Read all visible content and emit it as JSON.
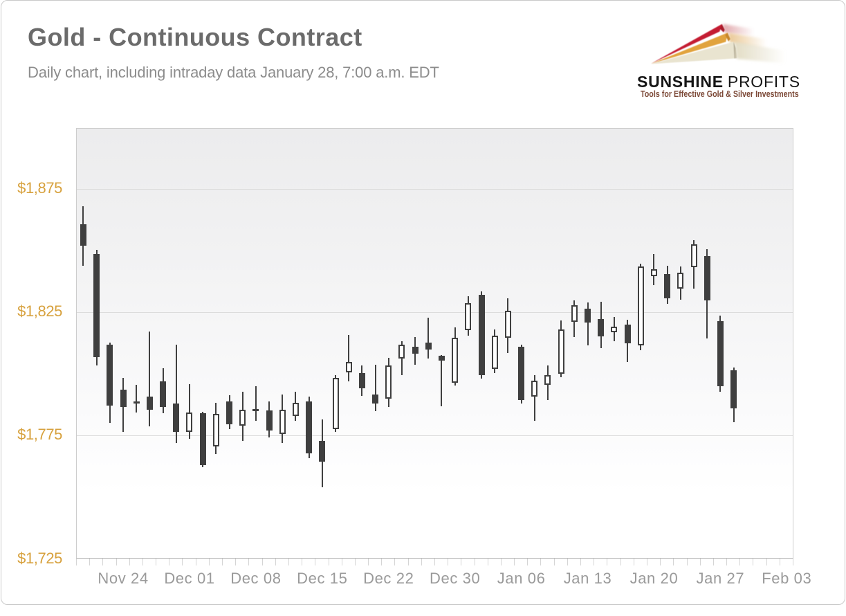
{
  "header": {
    "title": "Gold - Continuous Contract",
    "subtitle": "Daily chart, including intraday data January 28, 7:00 a.m. EDT"
  },
  "logo": {
    "brand_bold": "SUNSHINE",
    "brand_light": "PROFITS",
    "tagline": "Tools for Effective Gold & Silver Investments",
    "bolt_colors": {
      "red": "#c42033",
      "gold": "#e1a33e",
      "cream": "#e9e4d0"
    }
  },
  "colors": {
    "title": "#6b6b6b",
    "subtitle": "#8c8c8c",
    "y_axis_labels": "#d7a13d",
    "x_axis_labels": "#9b9b9b",
    "candle_outline": "#3f3f3f",
    "candle_down_fill": "#3f3f3f",
    "candle_up_fill": "#ffffff",
    "gridline": "#dcdcdc",
    "plot_border": "#cdcdcd",
    "tagline": "#7d4a38"
  },
  "chart_data": {
    "type": "candlestick",
    "title": "Gold - Continuous Contract",
    "subtitle": "Daily chart, including intraday data January 28, 7:00 a.m. EDT",
    "grid": "horizontal",
    "legend_position": "none",
    "y_axis": {
      "tick_labels": [
        "$1,875",
        "$1,825",
        "$1,775",
        "$1,725"
      ],
      "tick_values": [
        1875,
        1825,
        1775,
        1725
      ],
      "unit": "USD per troy ounce",
      "range": [
        1725,
        1900
      ]
    },
    "x_axis": {
      "slots": 54,
      "labels": [
        {
          "text": "Nov 24",
          "slot": 3
        },
        {
          "text": "Dec 01",
          "slot": 8
        },
        {
          "text": "Dec 08",
          "slot": 13
        },
        {
          "text": "Dec 15",
          "slot": 18
        },
        {
          "text": "Dec 22",
          "slot": 23
        },
        {
          "text": "Dec 30",
          "slot": 28
        },
        {
          "text": "Jan 06",
          "slot": 33
        },
        {
          "text": "Jan 13",
          "slot": 38
        },
        {
          "text": "Jan 20",
          "slot": 43
        },
        {
          "text": "Jan 27",
          "slot": 48
        },
        {
          "text": "Feb 03",
          "slot": 53
        }
      ]
    },
    "candles": [
      {
        "o": 1860.3,
        "h": 1867.7,
        "l": 1843.7,
        "c": 1851.6
      },
      {
        "o": 1848.3,
        "h": 1850.0,
        "l": 1803.2,
        "c": 1806.4
      },
      {
        "o": 1811.7,
        "h": 1812.4,
        "l": 1779.9,
        "c": 1786.9
      },
      {
        "o": 1793.3,
        "h": 1798.2,
        "l": 1776.2,
        "c": 1786.2
      },
      {
        "o": 1788.5,
        "h": 1795.4,
        "l": 1784.1,
        "c": 1787.7
      },
      {
        "o": 1790.4,
        "h": 1816.8,
        "l": 1778.5,
        "c": 1785.3
      },
      {
        "o": 1796.8,
        "h": 1802.0,
        "l": 1783.7,
        "c": 1786.2
      },
      {
        "o": 1787.6,
        "h": 1811.7,
        "l": 1771.7,
        "c": 1776.2
      },
      {
        "o": 1776.2,
        "h": 1795.7,
        "l": 1773.4,
        "c": 1784.1
      },
      {
        "o": 1783.7,
        "h": 1784.4,
        "l": 1761.8,
        "c": 1762.7
      },
      {
        "o": 1770.3,
        "h": 1788.0,
        "l": 1767.1,
        "c": 1783.4
      },
      {
        "o": 1788.6,
        "h": 1791.1,
        "l": 1777.3,
        "c": 1779.2
      },
      {
        "o": 1778.7,
        "h": 1792.4,
        "l": 1772.7,
        "c": 1785.2
      },
      {
        "o": 1785.5,
        "h": 1794.7,
        "l": 1780.6,
        "c": 1784.5
      },
      {
        "o": 1784.8,
        "h": 1788.7,
        "l": 1774.0,
        "c": 1776.9
      },
      {
        "o": 1775.5,
        "h": 1791.5,
        "l": 1771.7,
        "c": 1785.2
      },
      {
        "o": 1782.7,
        "h": 1792.6,
        "l": 1780.6,
        "c": 1788.0
      },
      {
        "o": 1788.6,
        "h": 1790.4,
        "l": 1765.6,
        "c": 1767.5
      },
      {
        "o": 1772.7,
        "h": 1781.3,
        "l": 1753.8,
        "c": 1764.2
      },
      {
        "o": 1777.2,
        "h": 1799.2,
        "l": 1776.2,
        "c": 1798.2
      },
      {
        "o": 1800.4,
        "h": 1815.6,
        "l": 1796.8,
        "c": 1804.6
      },
      {
        "o": 1800.1,
        "h": 1803.2,
        "l": 1790.7,
        "c": 1793.9
      },
      {
        "o": 1791.5,
        "h": 1803.4,
        "l": 1784.5,
        "c": 1787.6
      },
      {
        "o": 1789.7,
        "h": 1806.2,
        "l": 1786.2,
        "c": 1803.2
      },
      {
        "o": 1806.0,
        "h": 1813.1,
        "l": 1799.2,
        "c": 1811.7
      },
      {
        "o": 1810.6,
        "h": 1814.8,
        "l": 1803.4,
        "c": 1807.8
      },
      {
        "o": 1812.4,
        "h": 1822.4,
        "l": 1806.0,
        "c": 1809.6
      },
      {
        "o": 1807.2,
        "h": 1807.4,
        "l": 1786.7,
        "c": 1805.0
      },
      {
        "o": 1796.1,
        "h": 1818.6,
        "l": 1795.0,
        "c": 1814.5
      },
      {
        "o": 1817.5,
        "h": 1831.2,
        "l": 1815.2,
        "c": 1828.3
      },
      {
        "o": 1831.9,
        "h": 1833.3,
        "l": 1797.8,
        "c": 1799.2
      },
      {
        "o": 1801.8,
        "h": 1817.8,
        "l": 1800.1,
        "c": 1815.2
      },
      {
        "o": 1814.5,
        "h": 1830.4,
        "l": 1808.2,
        "c": 1825.2
      },
      {
        "o": 1810.6,
        "h": 1811.7,
        "l": 1787.6,
        "c": 1789.0
      },
      {
        "o": 1790.4,
        "h": 1799.2,
        "l": 1780.8,
        "c": 1797.1
      },
      {
        "o": 1795.4,
        "h": 1803.2,
        "l": 1789.0,
        "c": 1799.2
      },
      {
        "o": 1799.7,
        "h": 1821.4,
        "l": 1798.5,
        "c": 1817.8
      },
      {
        "o": 1820.8,
        "h": 1829.4,
        "l": 1814.8,
        "c": 1827.6
      },
      {
        "o": 1826.2,
        "h": 1828.7,
        "l": 1811.3,
        "c": 1820.6
      },
      {
        "o": 1822.0,
        "h": 1829.0,
        "l": 1810.2,
        "c": 1814.8
      },
      {
        "o": 1816.6,
        "h": 1822.8,
        "l": 1813.1,
        "c": 1818.9
      },
      {
        "o": 1819.6,
        "h": 1821.7,
        "l": 1804.6,
        "c": 1812.0
      },
      {
        "o": 1811.4,
        "h": 1844.4,
        "l": 1809.2,
        "c": 1843.3
      },
      {
        "o": 1839.4,
        "h": 1848.3,
        "l": 1835.6,
        "c": 1842.3
      },
      {
        "o": 1840.3,
        "h": 1843.6,
        "l": 1828.0,
        "c": 1830.4
      },
      {
        "o": 1834.2,
        "h": 1843.3,
        "l": 1829.8,
        "c": 1840.8
      },
      {
        "o": 1842.9,
        "h": 1854.0,
        "l": 1834.3,
        "c": 1852.4
      },
      {
        "o": 1847.6,
        "h": 1850.2,
        "l": 1814.1,
        "c": 1829.4
      },
      {
        "o": 1821.1,
        "h": 1823.4,
        "l": 1792.6,
        "c": 1794.7
      },
      {
        "o": 1801.2,
        "h": 1802.3,
        "l": 1780.1,
        "c": 1785.8
      }
    ]
  }
}
